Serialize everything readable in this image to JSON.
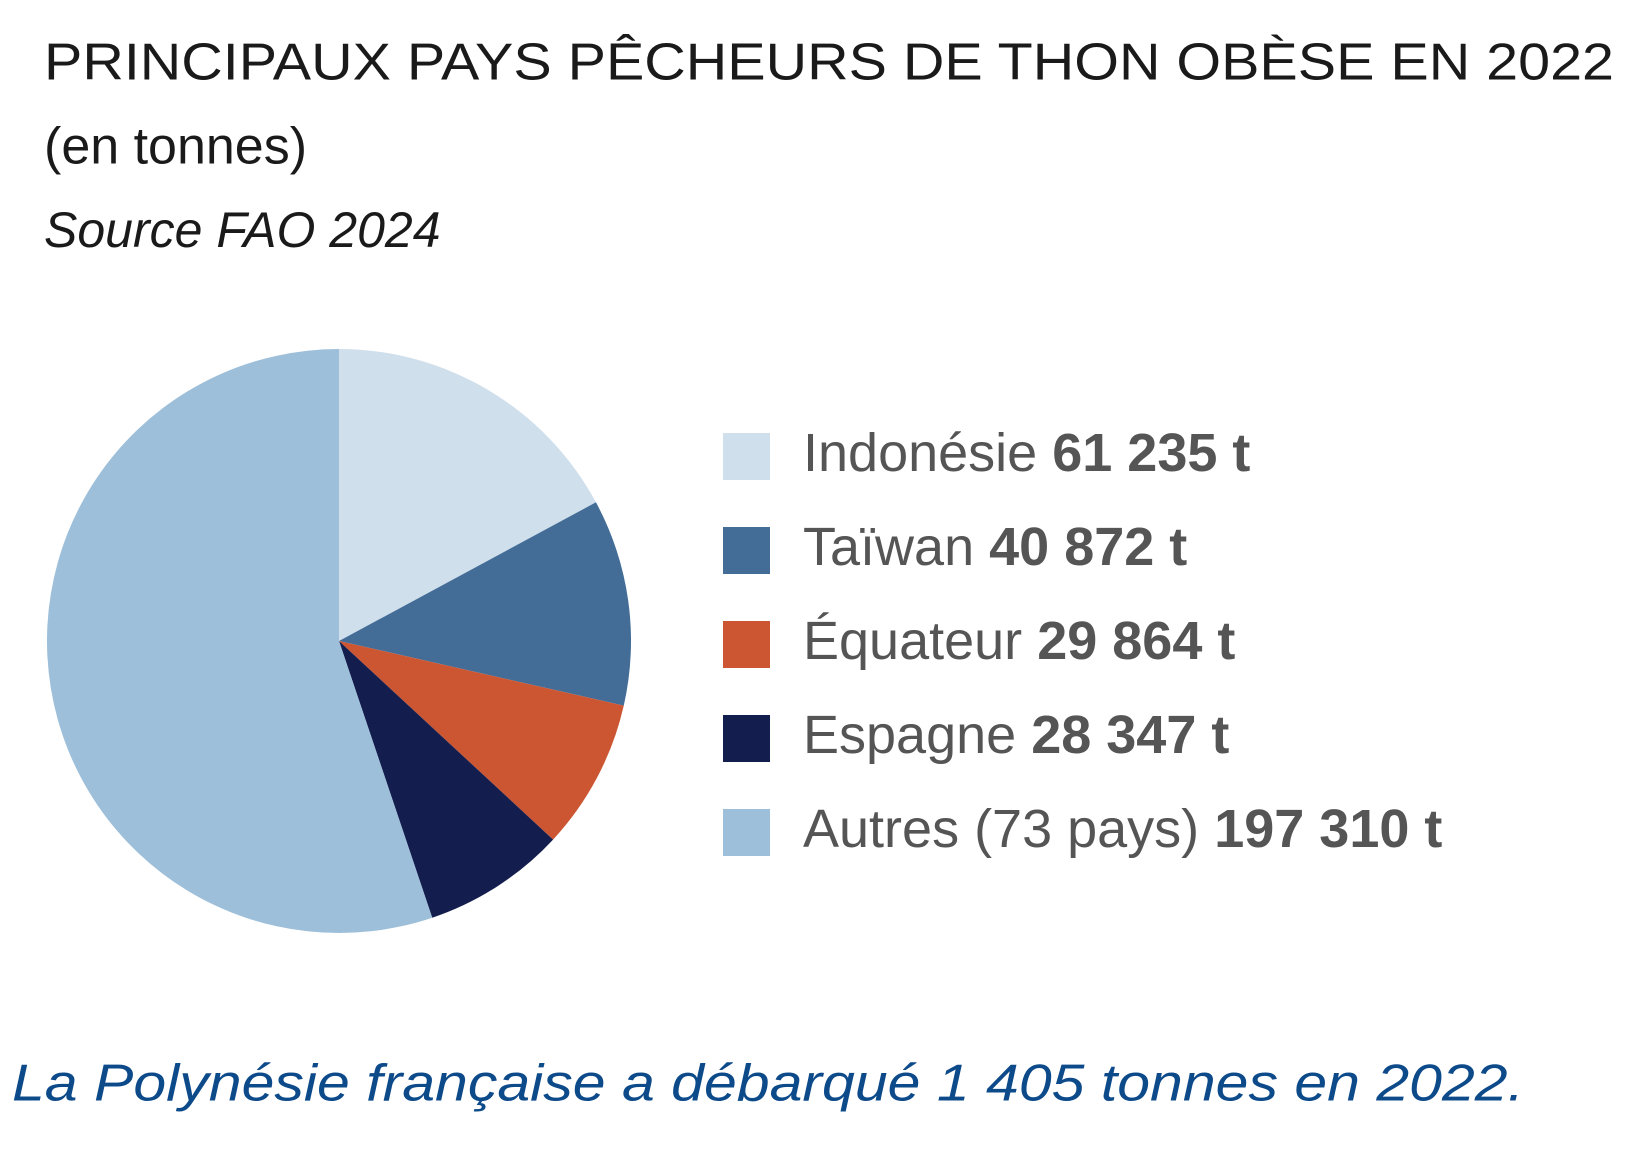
{
  "chart_data": {
    "type": "pie",
    "title": "PRINCIPAUX PAYS PÊCHEURS DE THON OBÈSE EN 2022",
    "subtitle": "(en tonnes)",
    "source": "Source FAO 2024",
    "annotation": "La Polynésie française a débarqué 1 405 tonnes en 2022.",
    "categories": [
      "Indonésie",
      "Taïwan",
      "Équateur",
      "Espagne",
      "Autres (73 pays)"
    ],
    "values": [
      61235,
      40872,
      29864,
      28347,
      197310
    ],
    "value_labels": [
      "61 235 t",
      "40 872 t",
      "29 864 t",
      "28 347 t",
      "197 310 t"
    ],
    "colors": [
      "#d0dfec",
      "#436d97",
      "#cc5632",
      "#141e4e",
      "#9dbfda"
    ],
    "legend": "right"
  }
}
